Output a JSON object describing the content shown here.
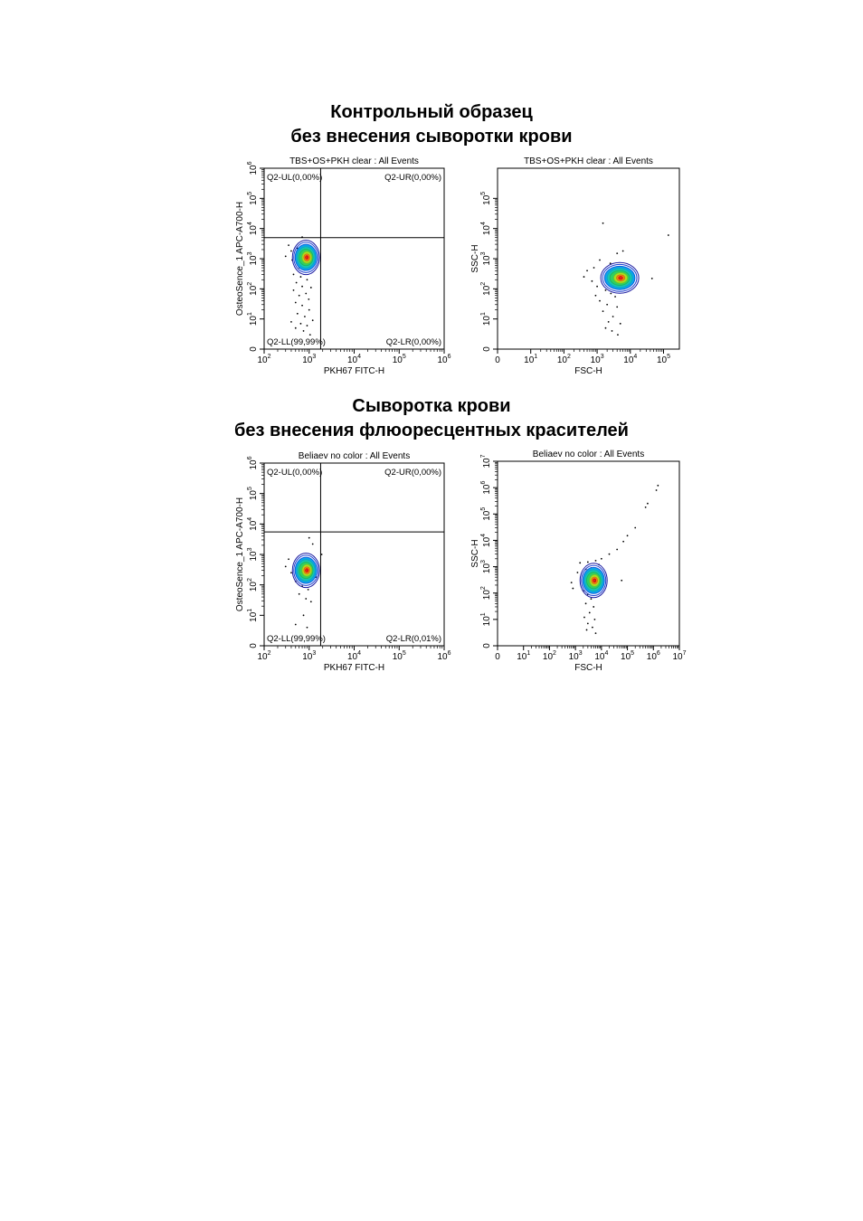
{
  "section1": {
    "line1": "Контрольный образец",
    "line2": "без внесения сыворотки крови"
  },
  "section2": {
    "line1": "Сыворотка крови",
    "line2": "без внесения флюоресцентных красителей"
  },
  "chart_data": [
    {
      "type": "scatter",
      "title": "TBS+OS+PKH clear : All Events",
      "xlabel": "PKH67 FITC-H",
      "ylabel": "OsteoSence_1 APC-A700-H",
      "x_scale": "log",
      "y_scale": "log",
      "xlim": [
        100,
        1000000
      ],
      "ylim": [
        "0",
        1000000
      ],
      "x_ticks": [
        {
          "b": "10",
          "e": "2"
        },
        {
          "b": "10",
          "e": "3"
        },
        {
          "b": "10",
          "e": "4"
        },
        {
          "b": "10",
          "e": "5"
        },
        {
          "b": "10",
          "e": "6"
        }
      ],
      "y_ticks": [
        {
          "b": "0",
          "e": ""
        },
        {
          "b": "10",
          "e": "1"
        },
        {
          "b": "10",
          "e": "2"
        },
        {
          "b": "10",
          "e": "3"
        },
        {
          "b": "10",
          "e": "4"
        },
        {
          "b": "10",
          "e": "5"
        },
        {
          "b": "10",
          "e": "6"
        }
      ],
      "gate_x": 1800,
      "gate_y": 5000,
      "quadrants": {
        "UL": "Q2-UL(0,00%)",
        "UR": "Q2-UR(0,00%)",
        "LL": "Q2-LL(99,99%)",
        "LR": "Q2-LR(0,00%)"
      },
      "population_center": [
        850,
        1100
      ],
      "outliers": [
        [
          700,
          5200
        ],
        [
          350,
          2800
        ],
        [
          550,
          2200
        ],
        [
          400,
          1800
        ],
        [
          300,
          1200
        ],
        [
          420,
          900
        ],
        [
          600,
          500
        ],
        [
          800,
          420
        ],
        [
          450,
          300
        ],
        [
          650,
          250
        ],
        [
          900,
          200
        ],
        [
          520,
          160
        ],
        [
          700,
          120
        ],
        [
          1100,
          110
        ],
        [
          450,
          90
        ],
        [
          850,
          70
        ],
        [
          600,
          60
        ],
        [
          980,
          45
        ],
        [
          500,
          35
        ],
        [
          700,
          28
        ],
        [
          1000,
          20
        ],
        [
          550,
          15
        ],
        [
          800,
          12
        ],
        [
          1200,
          9
        ],
        [
          400,
          8
        ],
        [
          650,
          7
        ],
        [
          900,
          6
        ],
        [
          500,
          5
        ],
        [
          750,
          4
        ],
        [
          1050,
          3
        ]
      ]
    },
    {
      "type": "scatter",
      "title": "TBS+OS+PKH clear : All Events",
      "xlabel": "FSC-H",
      "ylabel": "SSC-H",
      "x_scale": "log",
      "y_scale": "log",
      "xlim": [
        "0",
        300000
      ],
      "ylim": [
        "0",
        1000000
      ],
      "x_ticks": [
        {
          "b": "0",
          "e": ""
        },
        {
          "b": "10",
          "e": "1"
        },
        {
          "b": "10",
          "e": "2"
        },
        {
          "b": "10",
          "e": "3"
        },
        {
          "b": "10",
          "e": "4"
        },
        {
          "b": "10",
          "e": "5"
        }
      ],
      "y_ticks": [
        {
          "b": "0",
          "e": ""
        },
        {
          "b": "10",
          "e": "1"
        },
        {
          "b": "10",
          "e": "2"
        },
        {
          "b": "10",
          "e": "3"
        },
        {
          "b": "10",
          "e": "4"
        },
        {
          "b": "10",
          "e": "5"
        }
      ],
      "population_center": [
        4800,
        230
      ],
      "outliers": [
        [
          1500,
          15000
        ],
        [
          140000,
          6000
        ],
        [
          6000,
          1800
        ],
        [
          4000,
          1500
        ],
        [
          1200,
          900
        ],
        [
          800,
          500
        ],
        [
          500,
          400
        ],
        [
          400,
          250
        ],
        [
          2500,
          700
        ],
        [
          700,
          180
        ],
        [
          45000,
          220
        ],
        [
          1000,
          120
        ],
        [
          1800,
          90
        ],
        [
          2600,
          70
        ],
        [
          3500,
          55
        ],
        [
          1200,
          40
        ],
        [
          2000,
          30
        ],
        [
          4000,
          25
        ],
        [
          1500,
          18
        ],
        [
          3000,
          12
        ],
        [
          2200,
          8
        ],
        [
          5000,
          7
        ],
        [
          1800,
          5
        ],
        [
          2800,
          4
        ],
        [
          4200,
          3
        ],
        [
          900,
          60
        ],
        [
          6500,
          100
        ],
        [
          7500,
          140
        ]
      ]
    },
    {
      "type": "scatter",
      "title": "Beliaev no color : All Events",
      "xlabel": "PKH67 FITC-H",
      "ylabel": "OsteoSence_1 APC-A700-H",
      "x_scale": "log",
      "y_scale": "log",
      "xlim": [
        100,
        1000000
      ],
      "ylim": [
        "0",
        1000000
      ],
      "x_ticks": [
        {
          "b": "10",
          "e": "2"
        },
        {
          "b": "10",
          "e": "3"
        },
        {
          "b": "10",
          "e": "4"
        },
        {
          "b": "10",
          "e": "5"
        },
        {
          "b": "10",
          "e": "6"
        }
      ],
      "y_ticks": [
        {
          "b": "0",
          "e": ""
        },
        {
          "b": "10",
          "e": "1"
        },
        {
          "b": "10",
          "e": "2"
        },
        {
          "b": "10",
          "e": "3"
        },
        {
          "b": "10",
          "e": "4"
        },
        {
          "b": "10",
          "e": "5"
        },
        {
          "b": "10",
          "e": "6"
        }
      ],
      "gate_x": 1800,
      "gate_y": 5500,
      "quadrants": {
        "UL": "Q2-UL(0,00%)",
        "UR": "Q2-UR(0,00%)",
        "LL": "Q2-LL(99,99%)",
        "LR": "Q2-LR(0,01%)"
      },
      "population_center": [
        850,
        300
      ],
      "outliers": [
        [
          1000,
          3500
        ],
        [
          1200,
          2200
        ],
        [
          1900,
          1000
        ],
        [
          350,
          700
        ],
        [
          300,
          400
        ],
        [
          400,
          250
        ],
        [
          550,
          200
        ],
        [
          1400,
          180
        ],
        [
          500,
          130
        ],
        [
          700,
          90
        ],
        [
          950,
          70
        ],
        [
          600,
          50
        ],
        [
          850,
          35
        ],
        [
          1100,
          28
        ],
        [
          750,
          10
        ],
        [
          500,
          5
        ],
        [
          900,
          4
        ]
      ]
    },
    {
      "type": "scatter",
      "title": "Beliaev no color : All Events",
      "xlabel": "FSC-H",
      "ylabel": "SSC-H",
      "x_scale": "log",
      "y_scale": "log",
      "xlim": [
        "0",
        10000000
      ],
      "ylim": [
        "0",
        10000000
      ],
      "x_ticks": [
        {
          "b": "0",
          "e": ""
        },
        {
          "b": "10",
          "e": "1"
        },
        {
          "b": "10",
          "e": "2"
        },
        {
          "b": "10",
          "e": "3"
        },
        {
          "b": "10",
          "e": "4"
        },
        {
          "b": "10",
          "e": "5"
        },
        {
          "b": "10",
          "e": "6"
        },
        {
          "b": "10",
          "e": "7"
        }
      ],
      "y_ticks": [
        {
          "b": "0",
          "e": ""
        },
        {
          "b": "10",
          "e": "1"
        },
        {
          "b": "10",
          "e": "2"
        },
        {
          "b": "10",
          "e": "3"
        },
        {
          "b": "10",
          "e": "4"
        },
        {
          "b": "10",
          "e": "5"
        },
        {
          "b": "10",
          "e": "6"
        },
        {
          "b": "10",
          "e": "7"
        }
      ],
      "population_center": [
        5000,
        300
      ],
      "outliers": [
        [
          1500000,
          1200000
        ],
        [
          1300000,
          800000
        ],
        [
          600000,
          250000
        ],
        [
          500000,
          180000
        ],
        [
          200000,
          30000
        ],
        [
          100000,
          15000
        ],
        [
          70000,
          9000
        ],
        [
          40000,
          4500
        ],
        [
          20000,
          3000
        ],
        [
          10000,
          2000
        ],
        [
          6000,
          1700
        ],
        [
          3000,
          1500
        ],
        [
          1500,
          1400
        ],
        [
          8000,
          1200
        ],
        [
          4000,
          900
        ],
        [
          2500,
          800
        ],
        [
          1200,
          600
        ],
        [
          60000,
          300
        ],
        [
          800,
          150
        ],
        [
          700,
          250
        ],
        [
          2000,
          120
        ],
        [
          3000,
          90
        ],
        [
          4000,
          60
        ],
        [
          2500,
          40
        ],
        [
          5000,
          30
        ],
        [
          3500,
          18
        ],
        [
          2200,
          12
        ],
        [
          5500,
          10
        ],
        [
          3000,
          7
        ],
        [
          4500,
          5
        ],
        [
          2700,
          4
        ],
        [
          6000,
          3
        ]
      ]
    }
  ]
}
